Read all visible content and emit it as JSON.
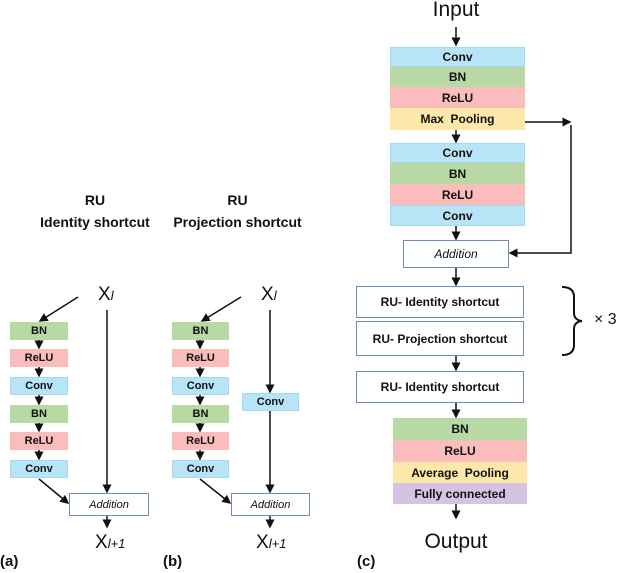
{
  "panel_a": {
    "title_line1": "RU",
    "title_line2": "Identity shortcut",
    "input": "X",
    "input_sub": "l",
    "layers": [
      "BN",
      "ReLU",
      "Conv",
      "BN",
      "ReLU",
      "Conv"
    ],
    "addition": "Addition",
    "output": "X",
    "output_sub": "l+1",
    "label": "(a)"
  },
  "panel_b": {
    "title_line1": "RU",
    "title_line2": "Projection shortcut",
    "input": "X",
    "input_sub": "l",
    "layers": [
      "BN",
      "ReLU",
      "Conv",
      "BN",
      "ReLU",
      "Conv"
    ],
    "shortcut": "Conv",
    "addition": "Addition",
    "output": "X",
    "output_sub": "l+1",
    "label": "(b)"
  },
  "panel_c": {
    "input": "Input",
    "block1": [
      "Conv",
      "BN",
      "ReLU",
      "Max  Pooling"
    ],
    "block2": [
      "Conv",
      "BN",
      "ReLU",
      "Conv"
    ],
    "addition": "Addition",
    "ru1": "RU- Identity shortcut",
    "ru2": "RU- Projection shortcut",
    "repeat": "× 3",
    "ru3": "RU- Identity shortcut",
    "block3": [
      "BN",
      "ReLU",
      "Average  Pooling",
      "Fully connected"
    ],
    "output": "Output",
    "label": "(c)"
  },
  "colors": {
    "conv": "#b7e4f6",
    "bn": "#b8d9a3",
    "relu": "#fbbcbc",
    "pool": "#fde8a9",
    "fc": "#d6c3e4",
    "box_border": "#6c8fb5"
  }
}
